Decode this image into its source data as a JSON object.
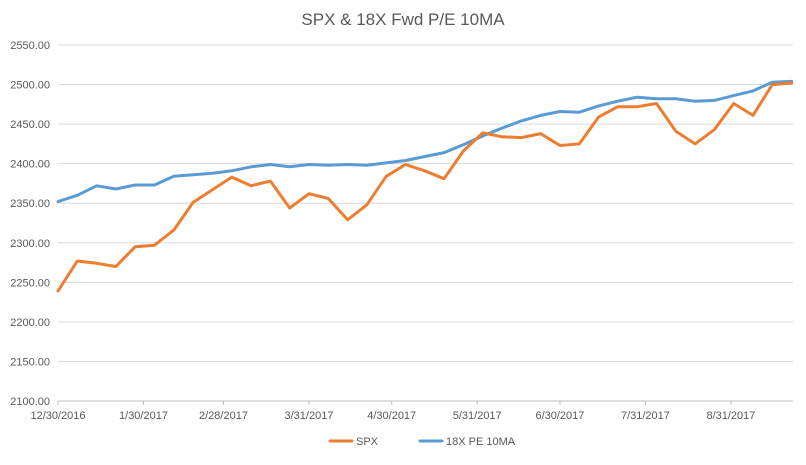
{
  "chart_data": {
    "type": "line",
    "title": "SPX & 18X Fwd P/E 10MA",
    "xlabel": "",
    "ylabel": "",
    "ylim": [
      2100,
      2550
    ],
    "y_ticks": [
      "2100.00",
      "2150.00",
      "2200.00",
      "2250.00",
      "2300.00",
      "2350.00",
      "2400.00",
      "2450.00",
      "2500.00",
      "2550.00"
    ],
    "y_tick_values": [
      2100,
      2150,
      2200,
      2250,
      2300,
      2350,
      2400,
      2450,
      2500,
      2550
    ],
    "x_tick_labels": [
      "12/30/2016",
      "1/30/2017",
      "2/28/2017",
      "3/31/2017",
      "4/30/2017",
      "5/31/2017",
      "6/30/2017",
      "7/31/2017",
      "8/31/2017"
    ],
    "x_tick_dates": [
      "2016-12-30",
      "2017-01-30",
      "2017-02-28",
      "2017-03-31",
      "2017-04-30",
      "2017-05-31",
      "2017-06-30",
      "2017-07-31",
      "2017-08-31"
    ],
    "x": [
      "2016-12-30",
      "2017-01-06",
      "2017-01-13",
      "2017-01-20",
      "2017-01-27",
      "2017-02-03",
      "2017-02-10",
      "2017-02-17",
      "2017-02-24",
      "2017-03-03",
      "2017-03-10",
      "2017-03-17",
      "2017-03-24",
      "2017-03-31",
      "2017-04-07",
      "2017-04-14",
      "2017-04-21",
      "2017-04-28",
      "2017-05-05",
      "2017-05-12",
      "2017-05-19",
      "2017-05-26",
      "2017-06-02",
      "2017-06-09",
      "2017-06-16",
      "2017-06-23",
      "2017-06-30",
      "2017-07-07",
      "2017-07-14",
      "2017-07-21",
      "2017-07-28",
      "2017-08-04",
      "2017-08-11",
      "2017-08-18",
      "2017-08-25",
      "2017-09-01",
      "2017-09-08",
      "2017-09-15",
      "2017-09-22"
    ],
    "series": [
      {
        "name": "SPX",
        "color": "#ed7d31",
        "values": [
          2239,
          2277,
          2274,
          2270,
          2295,
          2297,
          2316,
          2351,
          2367,
          2383,
          2372,
          2378,
          2344,
          2362,
          2356,
          2329,
          2348,
          2384,
          2399,
          2391,
          2381,
          2416,
          2439,
          2434,
          2433,
          2438,
          2423,
          2425,
          2459,
          2472,
          2472,
          2476,
          2441,
          2425,
          2443,
          2476,
          2461,
          2500,
          2502
        ]
      },
      {
        "name": "18X PE 10MA",
        "color": "#5b9bd5",
        "values": [
          2352,
          2360,
          2372,
          2368,
          2373,
          2373,
          2384,
          2386,
          2388,
          2391,
          2396,
          2399,
          2396,
          2399,
          2398,
          2399,
          2398,
          2401,
          2404,
          2409,
          2414,
          2424,
          2435,
          2445,
          2454,
          2461,
          2466,
          2465,
          2473,
          2479,
          2484,
          2482,
          2482,
          2479,
          2480,
          2486,
          2492,
          2503,
          2504
        ]
      }
    ],
    "grid": true,
    "legend_position": "bottom"
  }
}
